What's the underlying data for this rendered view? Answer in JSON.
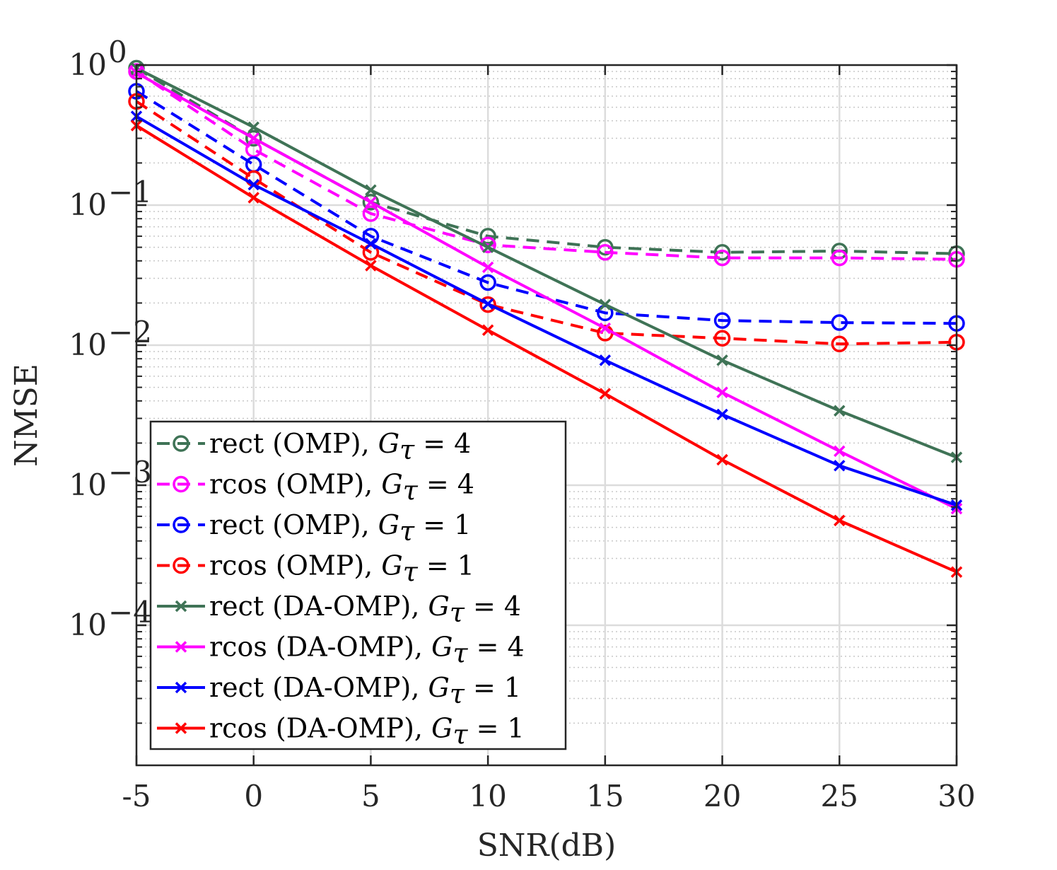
{
  "chart_data": {
    "type": "line",
    "xlabel": "SNR(dB)",
    "ylabel": "NMSE",
    "x": [
      -5,
      0,
      5,
      10,
      15,
      20,
      25,
      30
    ],
    "xlim": [
      -5,
      30
    ],
    "ylim": [
      1e-05,
      1
    ],
    "yscale": "log",
    "x_tick_labels": [
      "-5",
      "0",
      "5",
      "10",
      "15",
      "20",
      "25",
      "30"
    ],
    "y_ticks": [
      {
        "value": 1,
        "base": "10",
        "exp": "0"
      },
      {
        "value": 0.1,
        "base": "10",
        "exp": "−1"
      },
      {
        "value": 0.01,
        "base": "10",
        "exp": "−2"
      },
      {
        "value": 0.001,
        "base": "10",
        "exp": "−3"
      },
      {
        "value": 0.0001,
        "base": "10",
        "exp": "−4"
      }
    ],
    "grid": true,
    "legend_position": "bottom-left",
    "series": [
      {
        "name": "rect (OMP), Gτ = 4",
        "text": "rect (OMP), ",
        "sub": "τ",
        "value": "4",
        "color": "#3f7356",
        "dash": "dashed",
        "marker": "circle",
        "values": [
          0.95,
          0.3,
          0.105,
          0.06,
          0.05,
          0.046,
          0.047,
          0.045
        ]
      },
      {
        "name": "rcos (OMP), Gτ = 4",
        "text": "rcos (OMP), ",
        "sub": "τ",
        "value": "4",
        "color": "#ff00ff",
        "dash": "dashed",
        "marker": "circle",
        "values": [
          0.9,
          0.25,
          0.087,
          0.052,
          0.046,
          0.042,
          0.042,
          0.041
        ]
      },
      {
        "name": "rect (OMP), Gτ = 1",
        "text": "rect (OMP), ",
        "sub": "τ",
        "value": "1",
        "color": "#0000ff",
        "dash": "dashed",
        "marker": "circle",
        "values": [
          0.65,
          0.195,
          0.06,
          0.028,
          0.017,
          0.015,
          0.0145,
          0.0143
        ]
      },
      {
        "name": "rcos (OMP), Gτ = 1",
        "text": "rcos (OMP), ",
        "sub": "τ",
        "value": "1",
        "color": "#ff0000",
        "dash": "dashed",
        "marker": "circle",
        "values": [
          0.55,
          0.155,
          0.046,
          0.0195,
          0.0122,
          0.0112,
          0.0102,
          0.0105
        ]
      },
      {
        "name": "rect (DA-OMP), Gτ = 4",
        "text": "rect (DA-OMP), ",
        "sub": "τ",
        "value": "4",
        "color": "#3f7356",
        "dash": "solid",
        "marker": "x",
        "values": [
          0.95,
          0.36,
          0.128,
          0.05,
          0.0195,
          0.0078,
          0.0034,
          0.00158
        ]
      },
      {
        "name": "rcos (DA-OMP), Gτ = 4",
        "text": "rcos (DA-OMP), ",
        "sub": "τ",
        "value": "4",
        "color": "#ff00ff",
        "dash": "solid",
        "marker": "x",
        "values": [
          0.88,
          0.3,
          0.105,
          0.036,
          0.0132,
          0.0046,
          0.00175,
          0.00068
        ]
      },
      {
        "name": "rect (DA-OMP), Gτ = 1",
        "text": "rect (DA-OMP), ",
        "sub": "τ",
        "value": "1",
        "color": "#0000ff",
        "dash": "solid",
        "marker": "x",
        "values": [
          0.43,
          0.14,
          0.053,
          0.0197,
          0.0078,
          0.0032,
          0.00138,
          0.00072
        ]
      },
      {
        "name": "rcos (DA-OMP), Gτ = 1",
        "text": "rcos (DA-OMP), ",
        "sub": "τ",
        "value": "1",
        "color": "#ff0000",
        "dash": "solid",
        "marker": "x",
        "values": [
          0.37,
          0.113,
          0.037,
          0.0128,
          0.0045,
          0.00152,
          0.00056,
          0.00024
        ]
      }
    ]
  }
}
